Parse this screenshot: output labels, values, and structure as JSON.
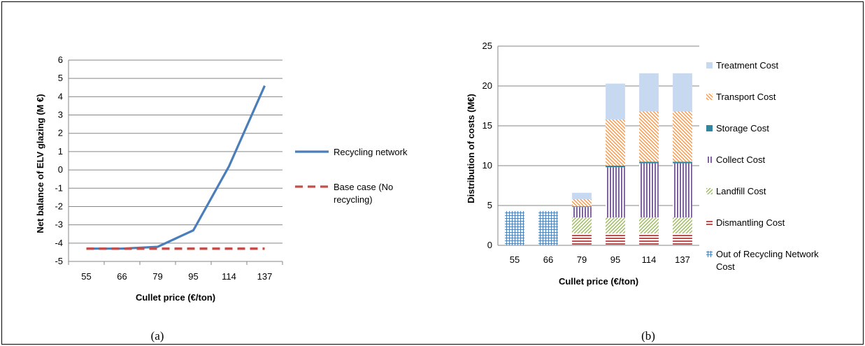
{
  "chart_data": [
    {
      "panel_label": "(a)",
      "type": "line",
      "categories": [
        "55",
        "66",
        "79",
        "95",
        "114",
        "137"
      ],
      "xlabel": "Cullet price (€/ton)",
      "ylabel": "Net balance of ELV glazing (M €)",
      "ylim": [
        -5,
        6
      ],
      "yticks": [
        -5,
        -4,
        -3,
        -2,
        -1,
        0,
        1,
        2,
        3,
        4,
        5,
        6
      ],
      "grid": true,
      "legend": "right",
      "series": [
        {
          "name": "Recycling network",
          "values": [
            -4.3,
            -4.3,
            -4.2,
            -3.3,
            0.2,
            4.6
          ],
          "color": "#4a7ebb",
          "dash": "solid"
        },
        {
          "name_lines": [
            "Base case (No",
            "recycling)"
          ],
          "name": "Base case (No recycling)",
          "values": [
            -4.3,
            -4.3,
            -4.3,
            -4.3,
            -4.3,
            -4.3
          ],
          "color": "#c0504d",
          "dash": "dashed"
        }
      ]
    },
    {
      "panel_label": "(b)",
      "type": "bar",
      "stacked": true,
      "categories": [
        "55",
        "66",
        "79",
        "95",
        "114",
        "137"
      ],
      "xlabel": "Cullet price (€/ton)",
      "ylabel": "Distribution of costs (M€)",
      "ylim": [
        0,
        25
      ],
      "yticks": [
        0,
        5,
        10,
        15,
        20,
        25
      ],
      "grid": true,
      "legend": "right",
      "series": [
        {
          "name": "Out of Recycling Network Cost",
          "name_lines": [
            "Out of Recycling Network",
            "Cost"
          ],
          "values": [
            4.3,
            4.3,
            0,
            0,
            0,
            0
          ],
          "color": "#4f81bd",
          "pattern": "grid"
        },
        {
          "name": "Dismantling Cost",
          "values": [
            0,
            0,
            1.5,
            1.5,
            1.5,
            1.5
          ],
          "color": "#c0504d",
          "pattern": "hstripe"
        },
        {
          "name": "Landfill Cost",
          "values": [
            0,
            0,
            2.0,
            2.0,
            2.0,
            2.0
          ],
          "color": "#9bbb59",
          "pattern": "diag"
        },
        {
          "name": "Collect Cost",
          "values": [
            0,
            0,
            1.3,
            6.3,
            6.8,
            6.8
          ],
          "color": "#8064a2",
          "pattern": "vstripe"
        },
        {
          "name": "Storage Cost",
          "values": [
            0,
            0,
            0.1,
            0.2,
            0.2,
            0.2
          ],
          "color": "#31859c",
          "pattern": "solid"
        },
        {
          "name": "Transport Cost",
          "values": [
            0,
            0,
            0.9,
            5.8,
            6.3,
            6.3
          ],
          "color": "#f79646",
          "pattern": "diagback"
        },
        {
          "name": "Treatment Cost",
          "values": [
            0,
            0,
            0.8,
            4.5,
            4.8,
            4.8
          ],
          "color": "#c6d9f1",
          "pattern": "solid"
        }
      ]
    }
  ]
}
